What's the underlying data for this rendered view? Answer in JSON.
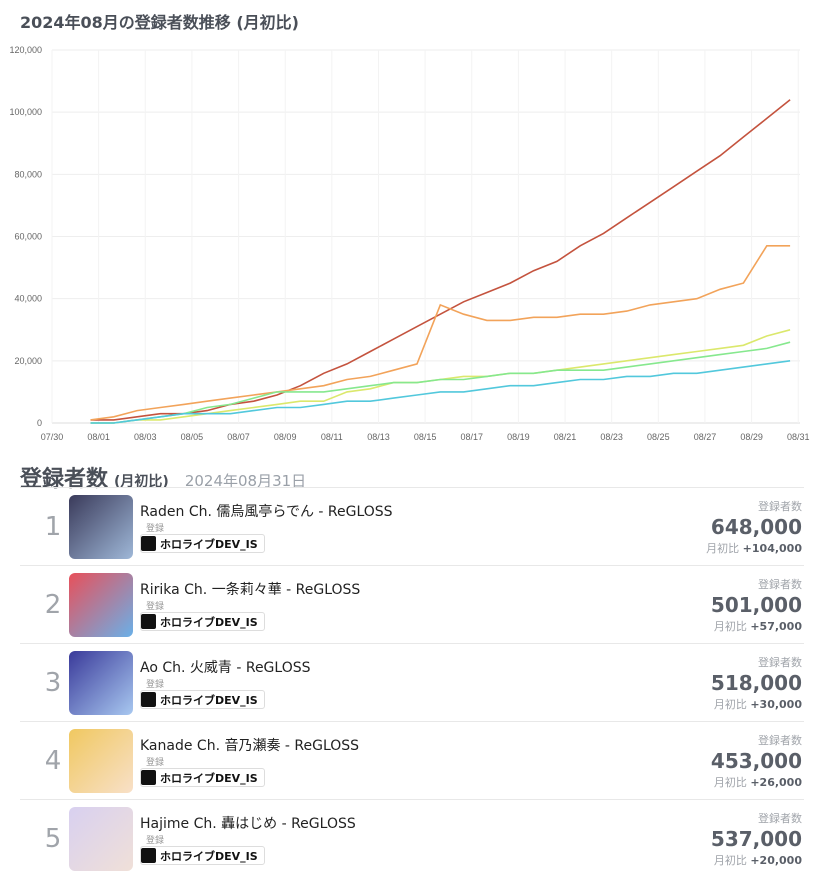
{
  "chart_title": "2024年08月の登録者数推移 (月初比)",
  "chart_data": {
    "type": "line",
    "x": [
      "08/01",
      "08/02",
      "08/03",
      "08/04",
      "08/05",
      "08/06",
      "08/07",
      "08/08",
      "08/09",
      "08/10",
      "08/11",
      "08/12",
      "08/13",
      "08/14",
      "08/15",
      "08/16",
      "08/17",
      "08/18",
      "08/19",
      "08/20",
      "08/21",
      "08/22",
      "08/23",
      "08/24",
      "08/25",
      "08/26",
      "08/27",
      "08/28",
      "08/29",
      "08/30",
      "08/31"
    ],
    "x_ticks": [
      "07/30",
      "08/01",
      "08/03",
      "08/05",
      "08/07",
      "08/09",
      "08/11",
      "08/13",
      "08/15",
      "08/17",
      "08/19",
      "08/21",
      "08/23",
      "08/25",
      "08/27",
      "08/29",
      "08/31"
    ],
    "y_ticks": [
      "0",
      "20,000",
      "40,000",
      "60,000",
      "80,000",
      "100,000",
      "120,000"
    ],
    "ylim": [
      0,
      120000
    ],
    "grid": true,
    "series": [
      {
        "color": "#c4533e",
        "values": [
          1000,
          1000,
          2000,
          3000,
          3000,
          4000,
          6000,
          7000,
          9000,
          12000,
          16000,
          19000,
          23000,
          27000,
          31000,
          35000,
          39000,
          42000,
          45000,
          49000,
          52000,
          57000,
          61000,
          66000,
          71000,
          76000,
          81000,
          86000,
          92000,
          98000,
          104000
        ]
      },
      {
        "color": "#f2a35a",
        "values": [
          1000,
          2000,
          4000,
          5000,
          6000,
          7000,
          8000,
          9000,
          10000,
          11000,
          12000,
          14000,
          15000,
          17000,
          19000,
          38000,
          35000,
          33000,
          33000,
          34000,
          34000,
          35000,
          35000,
          36000,
          38000,
          39000,
          40000,
          43000,
          45000,
          57000,
          57000
        ]
      },
      {
        "color": "#dbe86c",
        "values": [
          0,
          0,
          1000,
          1000,
          2000,
          3000,
          4000,
          5000,
          6000,
          7000,
          7000,
          10000,
          11000,
          13000,
          13000,
          14000,
          15000,
          15000,
          16000,
          16000,
          17000,
          18000,
          19000,
          20000,
          21000,
          22000,
          23000,
          24000,
          25000,
          28000,
          30000
        ]
      },
      {
        "color": "#86e88e",
        "values": [
          0,
          0,
          1000,
          2000,
          3000,
          5000,
          6000,
          8000,
          10000,
          10000,
          10000,
          11000,
          12000,
          13000,
          13000,
          14000,
          14000,
          15000,
          16000,
          16000,
          17000,
          17000,
          17000,
          18000,
          19000,
          20000,
          21000,
          22000,
          23000,
          24000,
          26000
        ]
      },
      {
        "color": "#52c8dc",
        "values": [
          0,
          0,
          1000,
          2000,
          3000,
          3000,
          3000,
          4000,
          5000,
          5000,
          6000,
          7000,
          7000,
          8000,
          9000,
          10000,
          10000,
          11000,
          12000,
          12000,
          13000,
          14000,
          14000,
          15000,
          15000,
          16000,
          16000,
          17000,
          18000,
          19000,
          20000
        ]
      }
    ]
  },
  "ranking": {
    "title": "登録者数",
    "subtitle": "(月初比)",
    "date": "2024年08月31日",
    "items": [
      {
        "rank": "1",
        "name": "Raden Ch. 儒烏風亭らでん  -  ReGLOSS",
        "sub": "登録",
        "badge": "ホロライブDEV_IS",
        "label": "登録者数",
        "count": "648,000",
        "diff_label": "月初比",
        "diff": "+104,000",
        "avatar_colors": [
          "#3a3a5a",
          "#9fb8d8"
        ]
      },
      {
        "rank": "2",
        "name": "Ririka Ch. 一条莉々華  -  ReGLOSS",
        "sub": "登録",
        "badge": "ホロライブDEV_IS",
        "label": "登録者数",
        "count": "501,000",
        "diff_label": "月初比",
        "diff": "+57,000",
        "avatar_colors": [
          "#e8505a",
          "#6ab0e8"
        ]
      },
      {
        "rank": "3",
        "name": "Ao Ch. 火威青  -  ReGLOSS",
        "sub": "登録",
        "badge": "ホロライブDEV_IS",
        "label": "登録者数",
        "count": "518,000",
        "diff_label": "月初比",
        "diff": "+30,000",
        "avatar_colors": [
          "#3a3a9a",
          "#a8c8f0"
        ]
      },
      {
        "rank": "4",
        "name": "Kanade Ch. 音乃瀬奏  -  ReGLOSS",
        "sub": "登録",
        "badge": "ホロライブDEV_IS",
        "label": "登録者数",
        "count": "453,000",
        "diff_label": "月初比",
        "diff": "+26,000",
        "avatar_colors": [
          "#f0c860",
          "#f8e0c8"
        ]
      },
      {
        "rank": "5",
        "name": "Hajime Ch. 轟はじめ  -  ReGLOSS",
        "sub": "登録",
        "badge": "ホロライブDEV_IS",
        "label": "登録者数",
        "count": "537,000",
        "diff_label": "月初比",
        "diff": "+20,000",
        "avatar_colors": [
          "#d8d0f0",
          "#f0e0d8"
        ]
      }
    ]
  }
}
